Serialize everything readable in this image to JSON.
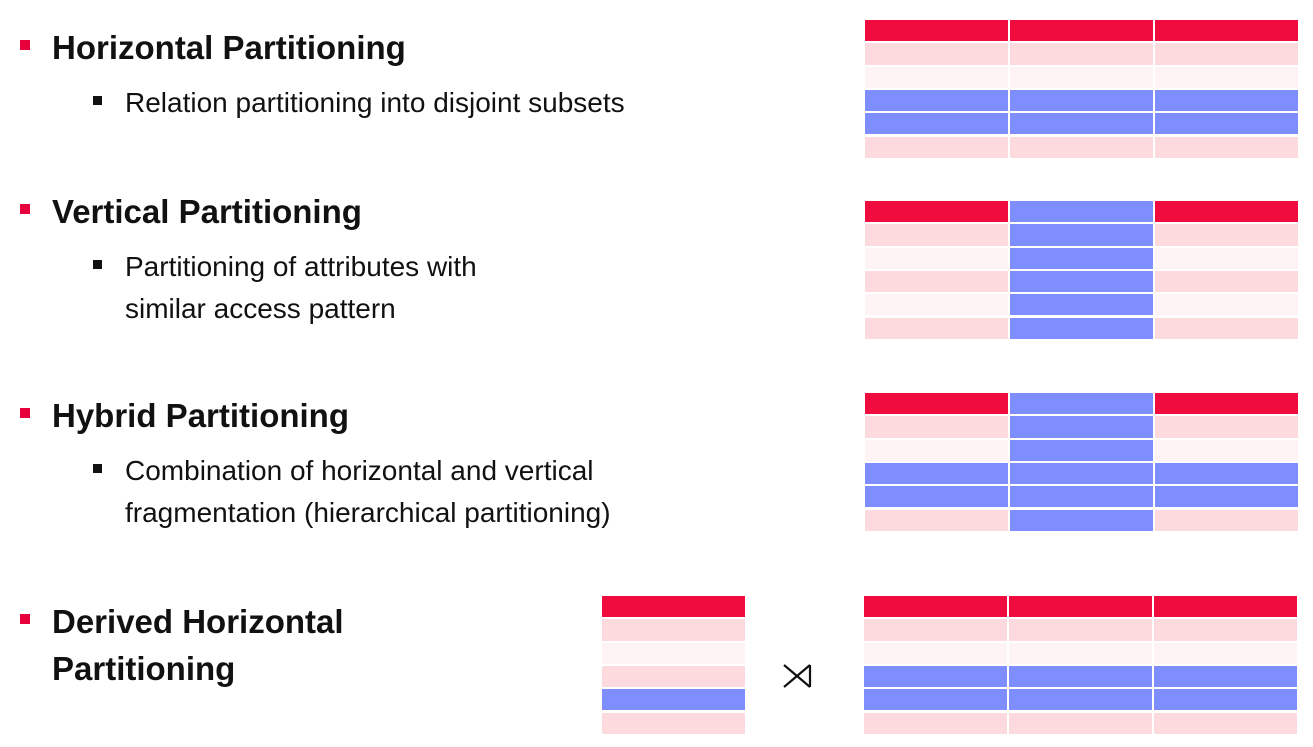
{
  "colors": {
    "header": "#f10c3f",
    "light_pink": "#fddadd",
    "very_light_pink": "#fff4f5",
    "blue": "#7e8eff"
  },
  "sections": [
    {
      "id": "horizontal",
      "title": "Horizontal Partitioning",
      "sub_lines": [
        "Relation partitioning into disjoint subsets"
      ]
    },
    {
      "id": "vertical",
      "title": "Vertical Partitioning",
      "sub_lines": [
        "Partitioning of attributes with",
        "similar access pattern"
      ]
    },
    {
      "id": "hybrid",
      "title": "Hybrid Partitioning",
      "sub_lines": [
        "Combination of horizontal and vertical",
        "fragmentation (hierarchical partitioning)"
      ]
    },
    {
      "id": "derived",
      "title_lines": [
        "Derived Horizontal",
        "Partitioning"
      ],
      "join_symbol": "⋊"
    }
  ]
}
